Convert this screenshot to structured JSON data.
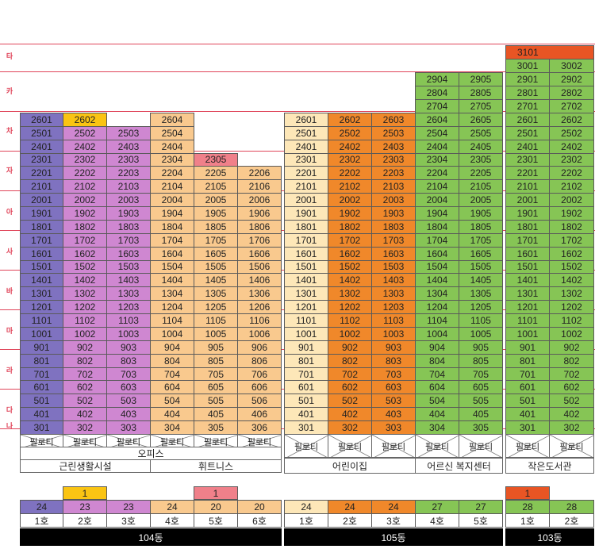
{
  "colors": {
    "purple": "#7f72c0",
    "pink": "#cf87d1",
    "peach": "#f9c98e",
    "cream": "#fde7b8",
    "orange": "#f0882a",
    "green": "#86c555",
    "yellow": "#fac413",
    "salmon": "#f0808a",
    "redorange": "#e85524",
    "gridline": "#e0455a"
  },
  "row_labels": [
    "타",
    "카",
    "차",
    "자",
    "아",
    "사",
    "바",
    "마",
    "라",
    "다",
    "나"
  ],
  "buildings": [
    {
      "name": "104동",
      "lines": [
        {
          "line": "1호",
          "color": "purple",
          "floors": 24,
          "extra": null,
          "units": [
            "2601",
            "2501",
            "2401",
            "2301",
            "2201",
            "2101",
            "2001",
            "1901",
            "1801",
            "1701",
            "1601",
            "1501",
            "1401",
            "1301",
            "1201",
            "1101",
            "1001",
            "901",
            "801",
            "701",
            "601",
            "501",
            "401",
            "301"
          ]
        },
        {
          "line": "2호",
          "color": "pink",
          "floors": 23,
          "extra": {
            "floors": "1",
            "color": "yellow"
          },
          "units": [
            "2602",
            "2502",
            "2402",
            "2302",
            "2202",
            "2102",
            "2002",
            "1902",
            "1802",
            "1702",
            "1602",
            "1502",
            "1402",
            "1302",
            "1202",
            "1102",
            "1002",
            "902",
            "802",
            "702",
            "602",
            "502",
            "402",
            "302"
          ]
        },
        {
          "line": "3호",
          "color": "pink",
          "floors": 23,
          "extra": null,
          "units": [
            "2503",
            "2403",
            "2303",
            "2203",
            "2103",
            "2003",
            "1903",
            "1803",
            "1703",
            "1603",
            "1503",
            "1403",
            "1303",
            "1203",
            "1103",
            "1003",
            "903",
            "803",
            "703",
            "603",
            "503",
            "403",
            "303"
          ]
        },
        {
          "line": "4호",
          "color": "peach",
          "floors": 24,
          "extra": null,
          "units": [
            "2604",
            "2504",
            "2404",
            "2304",
            "2204",
            "2104",
            "2004",
            "1904",
            "1804",
            "1704",
            "1604",
            "1504",
            "1404",
            "1304",
            "1204",
            "1104",
            "1004",
            "904",
            "804",
            "704",
            "604",
            "504",
            "404",
            "304"
          ]
        },
        {
          "line": "5호",
          "color": "peach",
          "floors": 20,
          "extra": {
            "floors": "1",
            "color": "salmon"
          },
          "units": [
            "2305",
            "2205",
            "2105",
            "2005",
            "1905",
            "1805",
            "1705",
            "1605",
            "1505",
            "1405",
            "1305",
            "1205",
            "1105",
            "1005",
            "905",
            "805",
            "705",
            "605",
            "505",
            "405",
            "305"
          ]
        },
        {
          "line": "6호",
          "color": "peach",
          "floors": 20,
          "extra": null,
          "units": [
            "2206",
            "2106",
            "2006",
            "1906",
            "1806",
            "1706",
            "1606",
            "1506",
            "1406",
            "1306",
            "1206",
            "1106",
            "1006",
            "906",
            "806",
            "706",
            "606",
            "506",
            "406",
            "306"
          ]
        }
      ],
      "piloti": [
        "필로티",
        "필로티",
        "필로티",
        "필로티",
        "필로티",
        "필로티"
      ],
      "facilities": [
        {
          "label": "오피스",
          "row": 1,
          "span": "all"
        },
        {
          "label": "근린생활시설",
          "row": 2,
          "span": "left"
        },
        {
          "label": "휘트니스",
          "row": 2,
          "span": "right"
        }
      ]
    },
    {
      "name": "105동",
      "lines": [
        {
          "line": "1호",
          "color": "cream",
          "floors": 24,
          "extra": null,
          "units": [
            "2601",
            "2501",
            "2401",
            "2301",
            "2201",
            "2101",
            "2001",
            "1901",
            "1801",
            "1701",
            "1601",
            "1501",
            "1401",
            "1301",
            "1201",
            "1101",
            "1001",
            "901",
            "801",
            "701",
            "601",
            "501",
            "401",
            "301"
          ]
        },
        {
          "line": "2호",
          "color": "orange",
          "floors": 24,
          "extra": null,
          "units": [
            "2602",
            "2502",
            "2402",
            "2302",
            "2202",
            "2102",
            "2002",
            "1902",
            "1802",
            "1702",
            "1602",
            "1502",
            "1402",
            "1302",
            "1202",
            "1102",
            "1002",
            "902",
            "802",
            "702",
            "602",
            "502",
            "402",
            "302"
          ]
        },
        {
          "line": "3호",
          "color": "orange",
          "floors": 24,
          "extra": null,
          "units": [
            "2603",
            "2503",
            "2403",
            "2303",
            "2203",
            "2103",
            "2003",
            "1903",
            "1803",
            "1703",
            "1603",
            "1503",
            "1403",
            "1303",
            "1203",
            "1103",
            "1003",
            "903",
            "803",
            "703",
            "603",
            "503",
            "403",
            "303"
          ]
        },
        {
          "line": "4호",
          "color": "green",
          "floors": 27,
          "extra": null,
          "units": [
            "2904",
            "2804",
            "2704",
            "2604",
            "2504",
            "2404",
            "2304",
            "2204",
            "2104",
            "2004",
            "1904",
            "1804",
            "1704",
            "1604",
            "1504",
            "1404",
            "1304",
            "1204",
            "1104",
            "1004",
            "904",
            "804",
            "704",
            "604",
            "504",
            "404",
            "304"
          ]
        },
        {
          "line": "5호",
          "color": "green",
          "floors": 27,
          "extra": null,
          "units": [
            "2905",
            "2805",
            "2705",
            "2605",
            "2505",
            "2405",
            "2305",
            "2205",
            "2105",
            "2005",
            "1905",
            "1805",
            "1705",
            "1605",
            "1505",
            "1405",
            "1305",
            "1205",
            "1105",
            "1005",
            "905",
            "805",
            "705",
            "605",
            "505",
            "405",
            "305"
          ]
        }
      ],
      "piloti": [
        "필로티",
        "필로티",
        "필로티",
        "필로티",
        "필로티"
      ],
      "facilities": [
        {
          "label": "어린이집",
          "row": 2,
          "span": "left"
        },
        {
          "label": "어르신 복지센터",
          "row": 2,
          "span": "right"
        }
      ]
    },
    {
      "name": "103동",
      "lines": [
        {
          "line": "1호",
          "color": "green",
          "floors": 28,
          "extra": {
            "floors": "1",
            "color": "redorange"
          },
          "units": [
            "3001",
            "2901",
            "2801",
            "2701",
            "2601",
            "2501",
            "2401",
            "2301",
            "2201",
            "2101",
            "2001",
            "1901",
            "1801",
            "1701",
            "1601",
            "1501",
            "1401",
            "1301",
            "1201",
            "1101",
            "1001",
            "901",
            "801",
            "701",
            "601",
            "501",
            "401",
            "301"
          ]
        },
        {
          "line": "2호",
          "color": "green",
          "floors": 28,
          "extra": null,
          "units": [
            "3002",
            "2902",
            "2802",
            "2702",
            "2602",
            "2502",
            "2402",
            "2302",
            "2202",
            "2102",
            "2002",
            "1902",
            "1802",
            "1702",
            "1602",
            "1502",
            "1402",
            "1302",
            "1202",
            "1102",
            "1002",
            "902",
            "802",
            "702",
            "602",
            "502",
            "402",
            "302"
          ]
        }
      ],
      "top_unit": {
        "label": "3101",
        "color": "redorange"
      },
      "piloti": [
        "필로티",
        "필로티"
      ],
      "facilities": [
        {
          "label": "작은도서관",
          "row": 2,
          "span": "all"
        }
      ]
    }
  ]
}
